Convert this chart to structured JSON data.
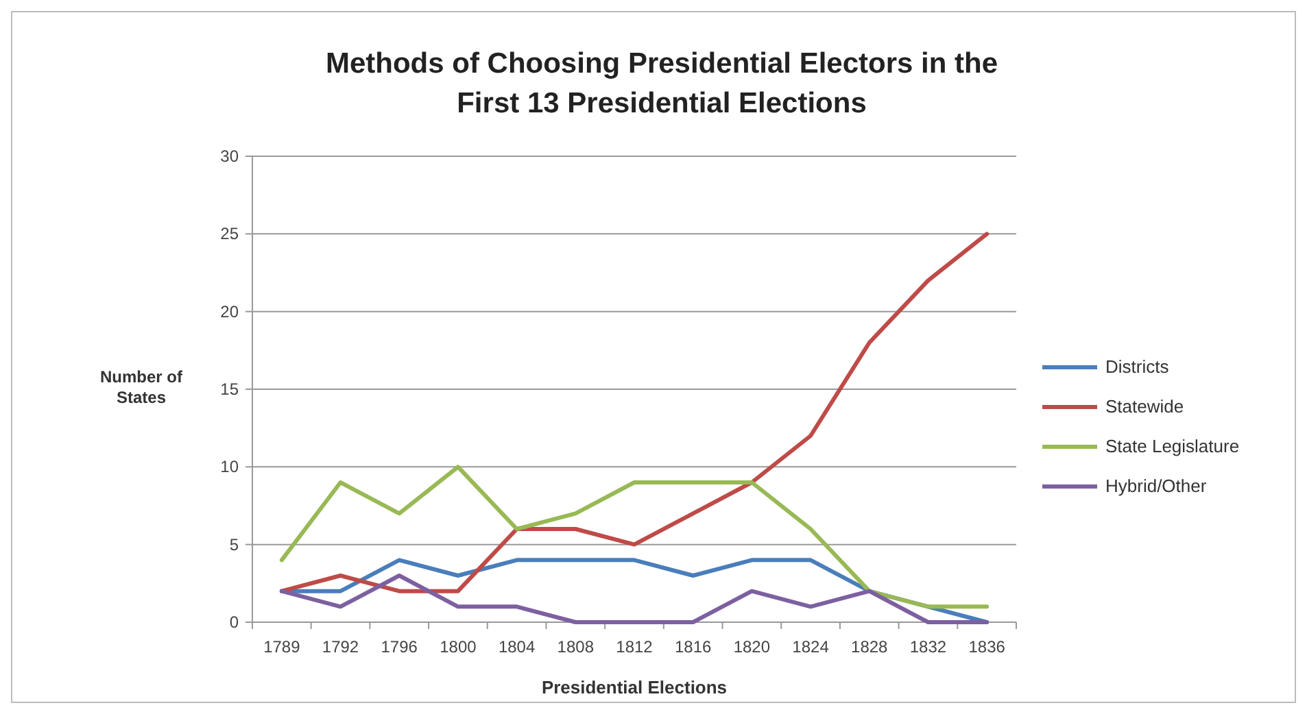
{
  "chart_data": {
    "type": "line",
    "title": "Methods of Choosing Presidential Electors in the First 13 Presidential Elections",
    "xlabel": "Presidential Elections",
    "ylabel": "Number of States",
    "categories": [
      "1789",
      "1792",
      "1796",
      "1800",
      "1804",
      "1808",
      "1812",
      "1816",
      "1820",
      "1824",
      "1828",
      "1832",
      "1836"
    ],
    "series": [
      {
        "name": "Districts",
        "color": "#4a7ebb",
        "values": [
          2,
          2,
          4,
          3,
          4,
          4,
          4,
          3,
          4,
          4,
          2,
          1,
          0
        ]
      },
      {
        "name": "Statewide",
        "color": "#be4b48",
        "values": [
          2,
          3,
          2,
          2,
          6,
          6,
          5,
          7,
          9,
          12,
          18,
          22,
          25
        ]
      },
      {
        "name": "State Legislature",
        "color": "#98b954",
        "values": [
          4,
          9,
          7,
          10,
          6,
          7,
          9,
          9,
          9,
          6,
          2,
          1,
          1
        ]
      },
      {
        "name": "Hybrid/Other",
        "color": "#7d60a0",
        "values": [
          2,
          1,
          3,
          1,
          1,
          0,
          0,
          0,
          2,
          1,
          2,
          0,
          0
        ]
      }
    ],
    "ylim": [
      0,
      30
    ],
    "yticks": [
      0,
      5,
      10,
      15,
      20,
      25,
      30
    ],
    "grid": "y",
    "legend": "right",
    "marker": "none",
    "line_style": "solid"
  }
}
